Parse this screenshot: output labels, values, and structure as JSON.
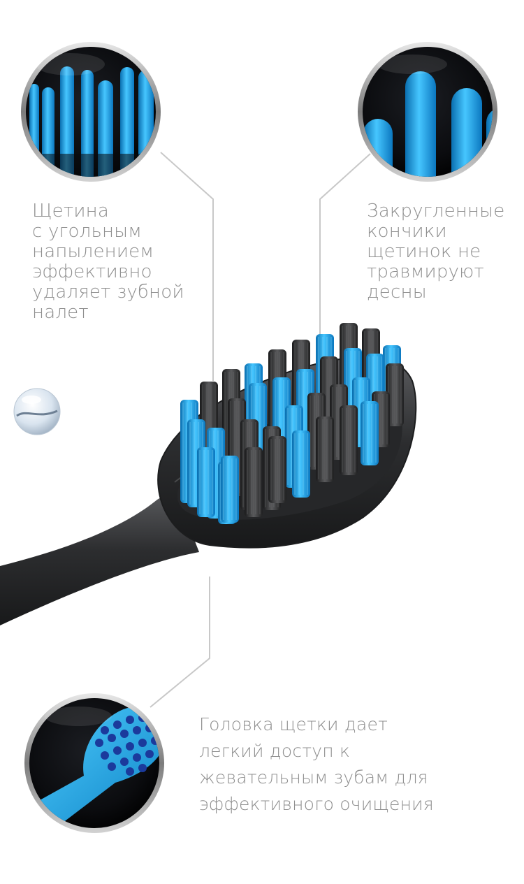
{
  "callouts": {
    "charcoal": {
      "icon": "bristles-closeup-icon",
      "lines": [
        "Щетина",
        "с угольным",
        "напылением",
        "эффективно",
        "удаляет зубной",
        "налет"
      ]
    },
    "rounded": {
      "icon": "rounded-tips-icon",
      "lines": [
        "Закругленные",
        "кончики",
        "щетинок не",
        "травмируют",
        "десны"
      ]
    },
    "head": {
      "icon": "brush-head-icon",
      "lines": [
        "Головка щетки дает",
        "легкий доступ к",
        "жевательным зубам для",
        "эффективного очищения"
      ]
    }
  },
  "colors": {
    "accent": "#1aa8e6",
    "handle": "#3a3b3d",
    "text": "#8f8f8f",
    "line": "#c8c8c8"
  }
}
